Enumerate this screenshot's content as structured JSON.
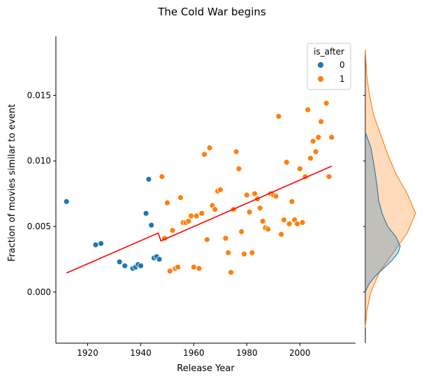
{
  "chart_data": {
    "type": "scatter",
    "title": "The Cold War begins",
    "xlabel": "Release Year",
    "ylabel": "Fraction of movies similar to event",
    "xlim": [
      1908,
      2021
    ],
    "ylim": [
      -0.0039,
      0.0195
    ],
    "x_ticks": [
      1920,
      1940,
      1960,
      1980,
      2000
    ],
    "y_ticks": [
      0.0,
      0.005,
      0.01,
      0.015
    ],
    "y_tick_labels": [
      "0.000",
      "0.005",
      "0.010",
      "0.015"
    ],
    "legend": {
      "title": "is_after",
      "position": "top-right",
      "entries": [
        "0",
        "1"
      ]
    },
    "colors": {
      "0": "#1f77b4",
      "1": "#ff7f0e",
      "fit": "#ff0000"
    },
    "grid": false,
    "series": [
      {
        "name": "0",
        "points": [
          [
            1912,
            0.0069
          ],
          [
            1923,
            0.0036
          ],
          [
            1925,
            0.0037
          ],
          [
            1932,
            0.0023
          ],
          [
            1934,
            0.002
          ],
          [
            1937,
            0.0018
          ],
          [
            1938,
            0.0019
          ],
          [
            1939,
            0.0021
          ],
          [
            1940,
            0.002
          ],
          [
            1942,
            0.006
          ],
          [
            1943,
            0.0086
          ],
          [
            1944,
            0.0051
          ],
          [
            1945,
            0.0026
          ],
          [
            1946,
            0.0027
          ],
          [
            1947,
            0.0025
          ]
        ]
      },
      {
        "name": "1",
        "points": [
          [
            1948,
            0.0088
          ],
          [
            1949,
            0.0041
          ],
          [
            1950,
            0.0068
          ],
          [
            1951,
            0.0016
          ],
          [
            1952,
            0.0047
          ],
          [
            1953,
            0.0018
          ],
          [
            1954,
            0.0019
          ],
          [
            1955,
            0.0072
          ],
          [
            1956,
            0.0053
          ],
          [
            1957,
            0.0053
          ],
          [
            1958,
            0.0054
          ],
          [
            1959,
            0.0058
          ],
          [
            1960,
            0.0019
          ],
          [
            1961,
            0.0058
          ],
          [
            1962,
            0.0018
          ],
          [
            1963,
            0.006
          ],
          [
            1964,
            0.0105
          ],
          [
            1965,
            0.004
          ],
          [
            1966,
            0.011
          ],
          [
            1967,
            0.0066
          ],
          [
            1968,
            0.0063
          ],
          [
            1969,
            0.0077
          ],
          [
            1970,
            0.0078
          ],
          [
            1972,
            0.0041
          ],
          [
            1973,
            0.003
          ],
          [
            1974,
            0.0015
          ],
          [
            1975,
            0.0063
          ],
          [
            1976,
            0.0107
          ],
          [
            1977,
            0.0094
          ],
          [
            1978,
            0.0046
          ],
          [
            1979,
            0.0029
          ],
          [
            1980,
            0.0074
          ],
          [
            1981,
            0.0061
          ],
          [
            1982,
            0.003
          ],
          [
            1983,
            0.0075
          ],
          [
            1984,
            0.0071
          ],
          [
            1985,
            0.0064
          ],
          [
            1986,
            0.0054
          ],
          [
            1987,
            0.0049
          ],
          [
            1988,
            0.0048
          ],
          [
            1989,
            0.0075
          ],
          [
            1990,
            0.0074
          ],
          [
            1991,
            0.0073
          ],
          [
            1992,
            0.0134
          ],
          [
            1993,
            0.0044
          ],
          [
            1994,
            0.0055
          ],
          [
            1995,
            0.0099
          ],
          [
            1996,
            0.0052
          ],
          [
            1997,
            0.0069
          ],
          [
            1998,
            0.0055
          ],
          [
            1999,
            0.0052
          ],
          [
            2000,
            0.0094
          ],
          [
            2001,
            0.0053
          ],
          [
            2002,
            0.0088
          ],
          [
            2003,
            0.0139
          ],
          [
            2004,
            0.0102
          ],
          [
            2005,
            0.0115
          ],
          [
            2006,
            0.0107
          ],
          [
            2007,
            0.0118
          ],
          [
            2008,
            0.013
          ],
          [
            2010,
            0.0144
          ],
          [
            2011,
            0.0088
          ],
          [
            2012,
            0.0118
          ]
        ]
      }
    ],
    "fit_line": {
      "segments": [
        [
          [
            1912,
            0.00145
          ],
          [
            1946.6,
            0.0045
          ]
        ],
        [
          [
            1946.6,
            0.0045
          ],
          [
            1947.6,
            0.0039
          ]
        ],
        [
          [
            1947.6,
            0.0039
          ],
          [
            2012,
            0.0096
          ]
        ]
      ]
    },
    "marginal_y": {
      "type": "kde",
      "series": [
        {
          "name": "0",
          "y": [
            0.0122,
            0.011,
            0.0095,
            0.008,
            0.007,
            0.006,
            0.005,
            0.0042,
            0.0035,
            0.003,
            0.0024,
            0.0018,
            0.0012,
            0.0006,
            0.0
          ],
          "density": [
            0.0,
            8,
            13,
            17,
            19,
            24,
            32,
            44,
            50,
            47,
            38,
            26,
            14,
            5,
            0
          ]
        },
        {
          "name": "1",
          "y": [
            0.0185,
            0.0165,
            0.015,
            0.0135,
            0.012,
            0.0105,
            0.009,
            0.0075,
            0.006,
            0.0045,
            0.003,
            0.0015,
            0.0,
            -0.0015,
            -0.0027
          ],
          "density": [
            0,
            2,
            6,
            12,
            22,
            32,
            44,
            60,
            72,
            60,
            40,
            20,
            8,
            2,
            0
          ]
        }
      ]
    }
  }
}
